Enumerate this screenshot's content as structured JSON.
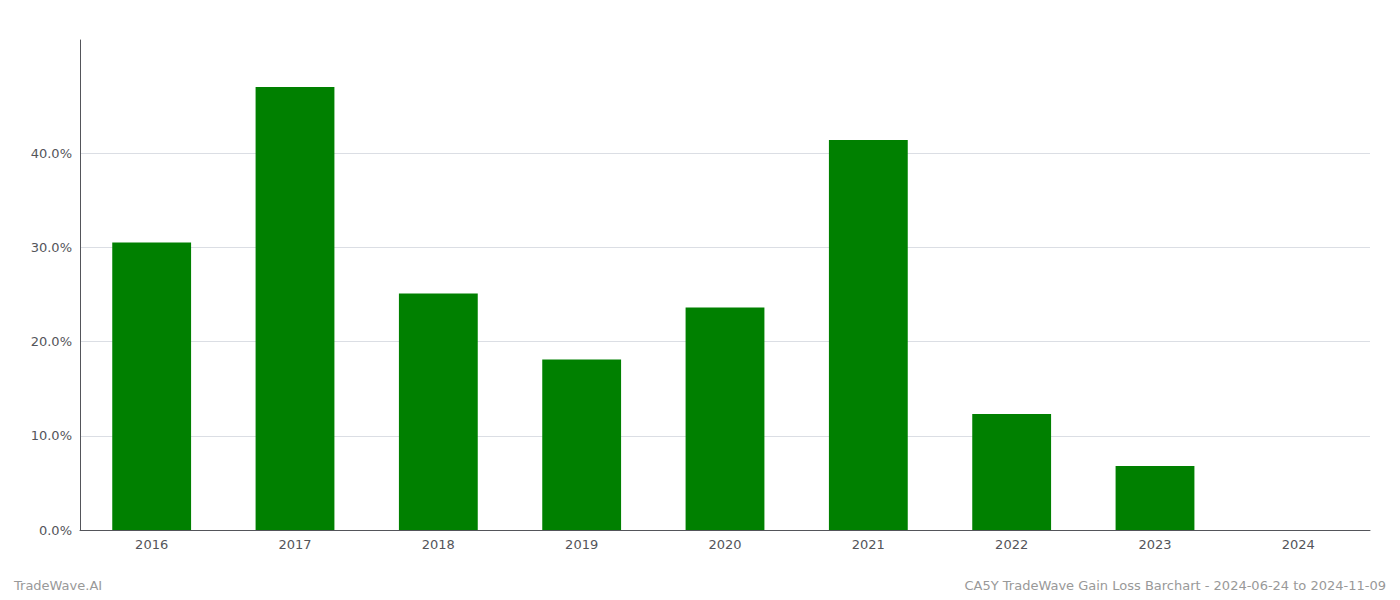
{
  "chart_data": {
    "type": "bar",
    "categories": [
      "2016",
      "2017",
      "2018",
      "2019",
      "2020",
      "2021",
      "2022",
      "2023",
      "2024"
    ],
    "values": [
      0.305,
      0.47,
      0.251,
      0.181,
      0.236,
      0.414,
      0.123,
      0.068,
      0.0
    ],
    "color": "#008000",
    "ylim": [
      0,
      0.52
    ],
    "yticks": [
      {
        "value": 0.0,
        "label": "0.0%"
      },
      {
        "value": 0.1,
        "label": "10.0%"
      },
      {
        "value": 0.2,
        "label": "20.0%"
      },
      {
        "value": 0.3,
        "label": "30.0%"
      },
      {
        "value": 0.4,
        "label": "40.0%"
      }
    ],
    "grid": true,
    "annotations": [
      "TradeWave.AI",
      "CA5Y TradeWave Gain Loss Barchart - 2024-06-24 to 2024-11-09"
    ]
  }
}
